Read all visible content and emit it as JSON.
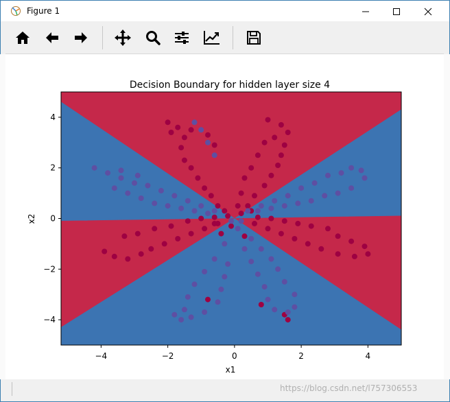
{
  "window": {
    "title": "Figure 1",
    "controls": [
      "minimize-icon",
      "maximize-icon",
      "close-icon"
    ]
  },
  "toolbar": {
    "buttons": [
      {
        "name": "home",
        "icon": "home-icon"
      },
      {
        "name": "back",
        "icon": "arrow-left-icon"
      },
      {
        "name": "forward",
        "icon": "arrow-right-icon"
      },
      {
        "name": "pan",
        "icon": "move-icon"
      },
      {
        "name": "zoom",
        "icon": "magnifier-icon"
      },
      {
        "name": "configure-subplots",
        "icon": "sliders-icon"
      },
      {
        "name": "edit-axis",
        "icon": "line-chart-icon"
      },
      {
        "name": "save",
        "icon": "floppy-disk-icon"
      }
    ]
  },
  "status": {
    "watermark": "https://blog.csdn.net/l757306553"
  },
  "colors": {
    "region_red": "#c5284a",
    "region_blue": "#3c74b2",
    "point_red": "#9e0142",
    "point_blue": "#5e4fa2"
  },
  "chart_data": {
    "type": "scatter",
    "title": "Decision Boundary for hidden layer size 4",
    "xlabel": "x1",
    "ylabel": "x2",
    "xlim": [
      -5.2,
      5.0
    ],
    "ylim": [
      -5.0,
      5.0
    ],
    "xticks": [
      -4,
      -2,
      0,
      2,
      4
    ],
    "yticks": [
      -4,
      -2,
      0,
      2,
      4
    ],
    "grid": false,
    "background_regions": [
      {
        "class": 0,
        "color": "#c5284a",
        "polygon": [
          [
            -5.2,
            4.6
          ],
          [
            0,
            0
          ],
          [
            5.0,
            4.3
          ],
          [
            5.0,
            5.0
          ],
          [
            -5.2,
            5.0
          ]
        ]
      },
      {
        "class": 1,
        "color": "#3c74b2",
        "polygon": [
          [
            -5.2,
            4.6
          ],
          [
            0,
            0
          ],
          [
            -5.2,
            -0.1
          ]
        ]
      },
      {
        "class": 1,
        "color": "#3c74b2",
        "polygon": [
          [
            5.0,
            4.3
          ],
          [
            0,
            0
          ],
          [
            5.0,
            0.1
          ]
        ]
      },
      {
        "class": 0,
        "color": "#c5284a",
        "polygon": [
          [
            -5.2,
            -0.1
          ],
          [
            0,
            0
          ],
          [
            -5.2,
            -4.3
          ]
        ]
      },
      {
        "class": 0,
        "color": "#c5284a",
        "polygon": [
          [
            5.0,
            0.1
          ],
          [
            0,
            0
          ],
          [
            5.0,
            -4.4
          ]
        ]
      },
      {
        "class": 1,
        "color": "#3c74b2",
        "polygon": [
          [
            -5.2,
            -4.3
          ],
          [
            0,
            0
          ],
          [
            5.0,
            -4.4
          ],
          [
            5.0,
            -5.0
          ],
          [
            -5.2,
            -5.0
          ]
        ]
      }
    ],
    "series": [
      {
        "name": "",
        "color": "#9e0142",
        "points": [
          [
            -2.0,
            3.8
          ],
          [
            -1.7,
            3.6
          ],
          [
            -1.5,
            3.2
          ],
          [
            -1.9,
            3.4
          ],
          [
            -1.6,
            2.8
          ],
          [
            -1.5,
            2.3
          ],
          [
            -1.3,
            2.0
          ],
          [
            -1.1,
            1.6
          ],
          [
            -0.9,
            1.2
          ],
          [
            -0.7,
            0.9
          ],
          [
            -0.5,
            0.5
          ],
          [
            -0.3,
            0.3
          ],
          [
            -1.3,
            3.5
          ],
          [
            -0.8,
            3.3
          ],
          [
            -0.6,
            2.9
          ],
          [
            1.0,
            3.9
          ],
          [
            1.4,
            3.7
          ],
          [
            1.6,
            3.4
          ],
          [
            1.2,
            3.2
          ],
          [
            0.9,
            3.0
          ],
          [
            0.7,
            2.5
          ],
          [
            0.5,
            2.0
          ],
          [
            0.3,
            1.6
          ],
          [
            0.2,
            1.0
          ],
          [
            0.1,
            0.5
          ],
          [
            1.5,
            2.9
          ],
          [
            1.4,
            2.5
          ],
          [
            1.3,
            2.1
          ],
          [
            1.1,
            1.7
          ],
          [
            0.9,
            1.3
          ],
          [
            0.6,
            0.9
          ],
          [
            0.4,
            0.5
          ],
          [
            -3.9,
            -1.3
          ],
          [
            -3.6,
            -1.5
          ],
          [
            -3.2,
            -1.6
          ],
          [
            -2.8,
            -1.4
          ],
          [
            -2.5,
            -1.2
          ],
          [
            -2.1,
            -1.0
          ],
          [
            -1.7,
            -0.8
          ],
          [
            -1.3,
            -0.6
          ],
          [
            -0.9,
            -0.4
          ],
          [
            -0.5,
            -0.2
          ],
          [
            -3.3,
            -0.7
          ],
          [
            -2.9,
            -0.6
          ],
          [
            -2.4,
            -0.4
          ],
          [
            -1.9,
            -0.3
          ],
          [
            -1.4,
            -0.1
          ],
          [
            -1.0,
            0.0
          ],
          [
            -0.6,
            0.05
          ],
          [
            3.1,
            -0.7
          ],
          [
            3.5,
            -0.9
          ],
          [
            3.9,
            -1.1
          ],
          [
            4.0,
            -1.4
          ],
          [
            3.6,
            -1.5
          ],
          [
            3.1,
            -1.4
          ],
          [
            2.6,
            -1.2
          ],
          [
            2.2,
            -1.0
          ],
          [
            1.8,
            -0.8
          ],
          [
            1.4,
            -0.6
          ],
          [
            1.0,
            -0.4
          ],
          [
            0.6,
            -0.2
          ],
          [
            2.8,
            -0.4
          ],
          [
            2.3,
            -0.3
          ],
          [
            1.9,
            -0.2
          ],
          [
            1.5,
            -0.1
          ],
          [
            1.1,
            0.0
          ],
          [
            0.7,
            0.05
          ],
          [
            -0.8,
            -3.2
          ],
          [
            0.8,
            -3.4
          ],
          [
            1.6,
            -4.0
          ],
          [
            1.5,
            -3.8
          ],
          [
            -0.1,
            -0.3
          ],
          [
            0.3,
            -0.7
          ],
          [
            -0.4,
            -0.6
          ],
          [
            0.2,
            0.2
          ],
          [
            -0.2,
            0.1
          ],
          [
            0.5,
            0.3
          ],
          [
            -0.6,
            -0.2
          ]
        ]
      },
      {
        "name": "",
        "color": "#5e4fa2",
        "points": [
          [
            -4.2,
            2.0
          ],
          [
            -3.8,
            1.8
          ],
          [
            -3.4,
            1.6
          ],
          [
            -3.0,
            1.4
          ],
          [
            -2.6,
            1.3
          ],
          [
            -2.2,
            1.1
          ],
          [
            -1.8,
            0.9
          ],
          [
            -1.4,
            0.7
          ],
          [
            -1.0,
            0.5
          ],
          [
            -0.6,
            0.3
          ],
          [
            -3.6,
            1.2
          ],
          [
            -3.2,
            1.0
          ],
          [
            -2.8,
            0.8
          ],
          [
            -2.4,
            0.6
          ],
          [
            -2.0,
            0.5
          ],
          [
            -1.6,
            0.4
          ],
          [
            -1.2,
            0.3
          ],
          [
            -0.8,
            0.2
          ],
          [
            -3.4,
            1.9
          ],
          [
            -2.9,
            1.7
          ],
          [
            3.8,
            1.9
          ],
          [
            3.5,
            2.0
          ],
          [
            3.2,
            1.8
          ],
          [
            2.8,
            1.7
          ],
          [
            2.4,
            1.4
          ],
          [
            2.0,
            1.2
          ],
          [
            1.6,
            0.9
          ],
          [
            1.2,
            0.7
          ],
          [
            0.8,
            0.5
          ],
          [
            0.4,
            0.3
          ],
          [
            3.5,
            1.2
          ],
          [
            3.1,
            1.0
          ],
          [
            2.7,
            0.9
          ],
          [
            2.3,
            0.7
          ],
          [
            1.9,
            0.6
          ],
          [
            1.5,
            0.5
          ],
          [
            1.1,
            0.4
          ],
          [
            0.7,
            0.3
          ],
          [
            3.9,
            1.6
          ],
          [
            -1.2,
            3.8
          ],
          [
            -1.0,
            3.5
          ],
          [
            -0.8,
            3.0
          ],
          [
            -0.6,
            2.5
          ],
          [
            -0.3,
            -1.0
          ],
          [
            -0.6,
            -1.6
          ],
          [
            -0.9,
            -2.1
          ],
          [
            -1.2,
            -2.6
          ],
          [
            -1.4,
            -3.1
          ],
          [
            -1.5,
            -3.6
          ],
          [
            -1.8,
            -3.8
          ],
          [
            -1.6,
            -4.0
          ],
          [
            -1.3,
            -3.9
          ],
          [
            -0.9,
            -3.7
          ],
          [
            -0.5,
            -3.3
          ],
          [
            -0.4,
            -2.8
          ],
          [
            -0.3,
            -2.3
          ],
          [
            -0.2,
            -1.8
          ],
          [
            0.3,
            -1.2
          ],
          [
            0.5,
            -1.7
          ],
          [
            0.7,
            -2.2
          ],
          [
            0.9,
            -2.7
          ],
          [
            1.0,
            -3.2
          ],
          [
            1.2,
            -3.6
          ],
          [
            1.6,
            -3.7
          ],
          [
            1.8,
            -3.5
          ],
          [
            1.8,
            -3.0
          ],
          [
            1.5,
            -2.5
          ],
          [
            1.3,
            -2.0
          ],
          [
            1.1,
            -1.6
          ],
          [
            0.8,
            -1.2
          ],
          [
            0.5,
            -0.8
          ],
          [
            0.1,
            -0.4
          ],
          [
            -0.1,
            -0.1
          ],
          [
            0.2,
            -0.1
          ]
        ]
      }
    ]
  }
}
